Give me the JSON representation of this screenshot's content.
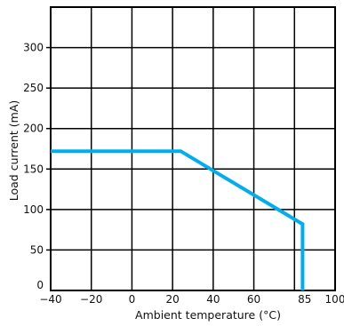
{
  "chart_data": {
    "type": "line",
    "title": "",
    "xlabel": "Ambient  temperature  (°C)",
    "ylabel": "Load  current  (mA)",
    "xlim": [
      -40,
      100
    ],
    "ylim": [
      0,
      350
    ],
    "x_ticks": [
      -40,
      -20,
      0,
      20,
      40,
      60,
      85,
      100
    ],
    "x_tick_labels": [
      "−40",
      "−20",
      "0",
      "20",
      "40",
      "60",
      "85",
      "100"
    ],
    "y_ticks": [
      0,
      50,
      100,
      150,
      200,
      250,
      300
    ],
    "y_tick_labels": [
      "0",
      "50",
      "100",
      "150",
      "200",
      "250",
      "300"
    ],
    "x_gridlines": [
      -20,
      0,
      20,
      40,
      60,
      80
    ],
    "y_gridlines": [
      50,
      100,
      150,
      200,
      250,
      300
    ],
    "grid": true,
    "series": [
      {
        "x": [
          -40,
          24,
          84,
          84
        ],
        "y": [
          172,
          172,
          82,
          0
        ],
        "color": "#00AEEF"
      }
    ]
  }
}
